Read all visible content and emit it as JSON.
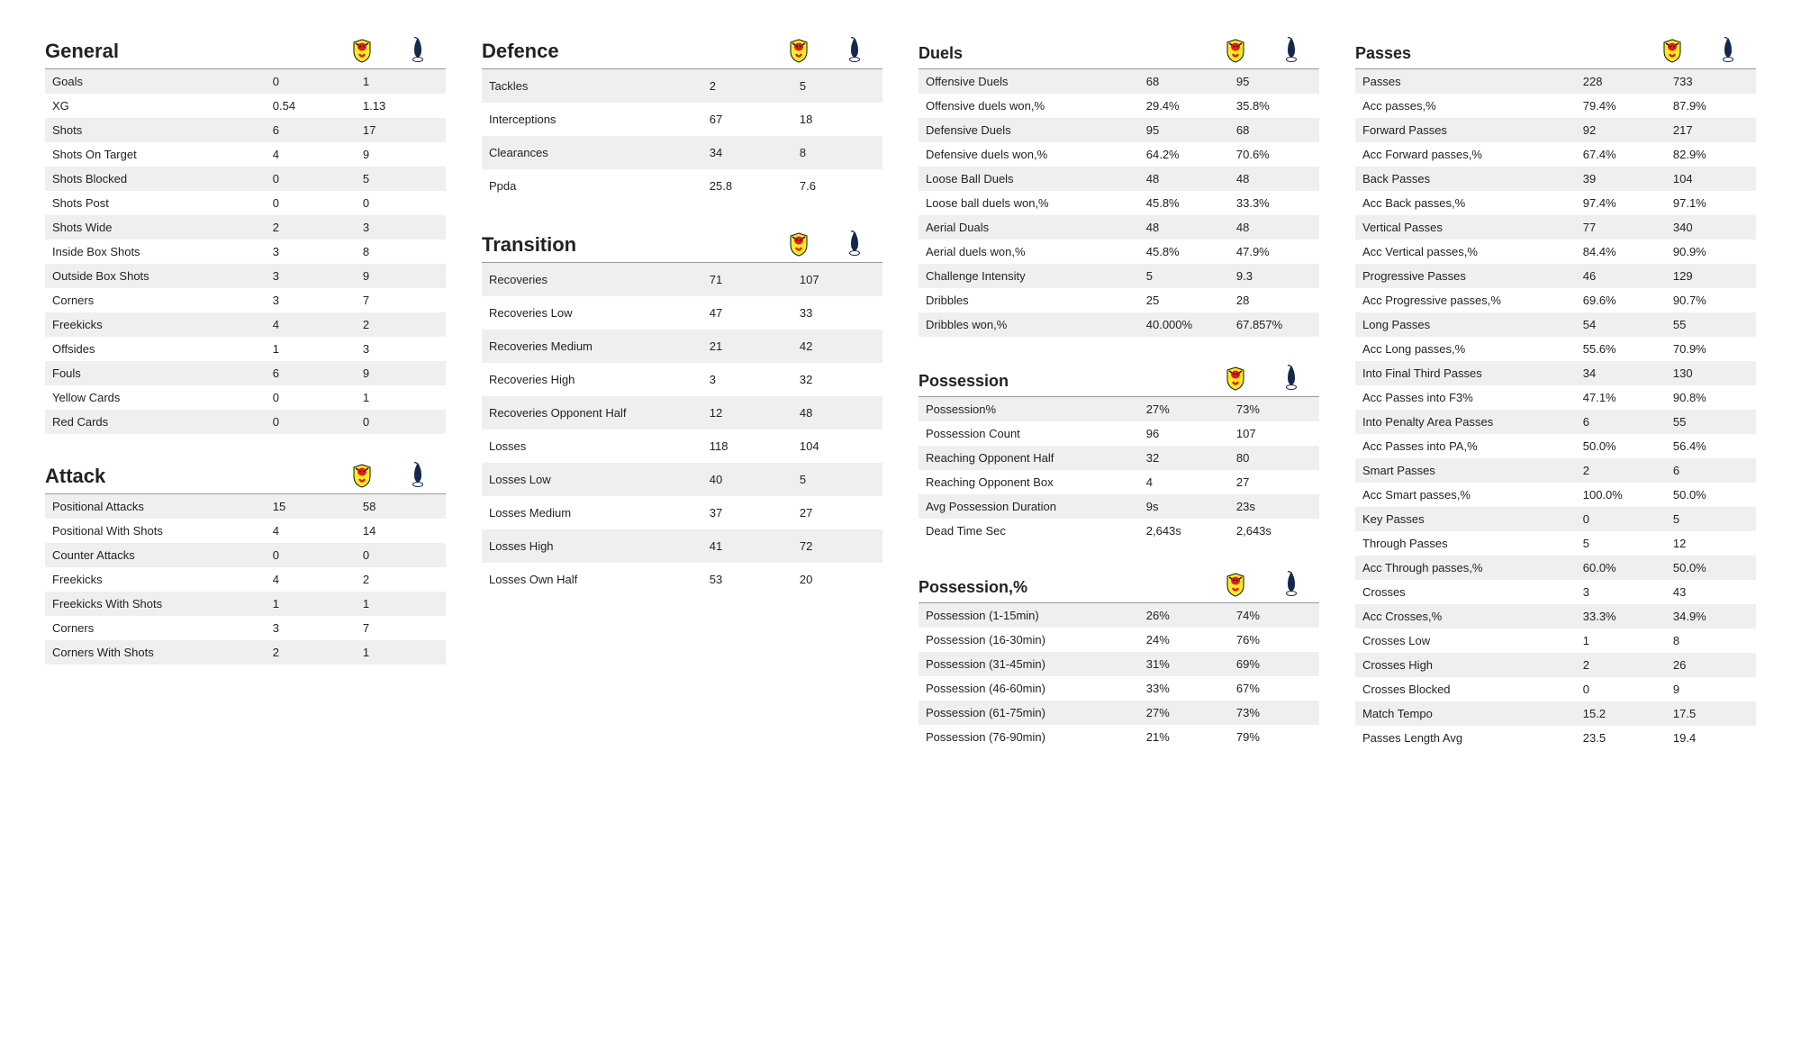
{
  "teams": {
    "home": "Watford",
    "away": "Tottenham"
  },
  "sections": {
    "general": {
      "title": "General",
      "rows": [
        {
          "label": "Goals",
          "home": "0",
          "away": "1"
        },
        {
          "label": "XG",
          "home": "0.54",
          "away": "1.13"
        },
        {
          "label": "Shots",
          "home": "6",
          "away": "17"
        },
        {
          "label": "Shots On Target",
          "home": "4",
          "away": "9"
        },
        {
          "label": "Shots Blocked",
          "home": "0",
          "away": "5"
        },
        {
          "label": "Shots Post",
          "home": "0",
          "away": "0"
        },
        {
          "label": "Shots Wide",
          "home": "2",
          "away": "3"
        },
        {
          "label": "Inside Box Shots",
          "home": "3",
          "away": "8"
        },
        {
          "label": "Outside Box Shots",
          "home": "3",
          "away": "9"
        },
        {
          "label": "Corners",
          "home": "3",
          "away": "7"
        },
        {
          "label": "Freekicks",
          "home": "4",
          "away": "2"
        },
        {
          "label": "Offsides",
          "home": "1",
          "away": "3"
        },
        {
          "label": "Fouls",
          "home": "6",
          "away": "9"
        },
        {
          "label": "Yellow Cards",
          "home": "0",
          "away": "1"
        },
        {
          "label": "Red Cards",
          "home": "0",
          "away": "0"
        }
      ]
    },
    "attack": {
      "title": "Attack",
      "rows": [
        {
          "label": "Positional Attacks",
          "home": "15",
          "away": "58"
        },
        {
          "label": "Positional With Shots",
          "home": "4",
          "away": "14"
        },
        {
          "label": "Counter Attacks",
          "home": "0",
          "away": "0"
        },
        {
          "label": "Freekicks",
          "home": "4",
          "away": "2"
        },
        {
          "label": "Freekicks With Shots",
          "home": "1",
          "away": "1"
        },
        {
          "label": "Corners",
          "home": "3",
          "away": "7"
        },
        {
          "label": "Corners With Shots",
          "home": "2",
          "away": "1"
        }
      ]
    },
    "defence": {
      "title": "Defence",
      "rows": [
        {
          "label": "Tackles",
          "home": "2",
          "away": "5"
        },
        {
          "label": "Interceptions",
          "home": "67",
          "away": "18"
        },
        {
          "label": "Clearances",
          "home": "34",
          "away": "8"
        },
        {
          "label": "Ppda",
          "home": "25.8",
          "away": "7.6"
        }
      ]
    },
    "transition": {
      "title": "Transition",
      "rows": [
        {
          "label": "Recoveries",
          "home": "71",
          "away": "107"
        },
        {
          "label": "Recoveries Low",
          "home": "47",
          "away": "33"
        },
        {
          "label": "Recoveries Medium",
          "home": "21",
          "away": "42"
        },
        {
          "label": "Recoveries High",
          "home": "3",
          "away": "32"
        },
        {
          "label": "Recoveries Opponent Half",
          "home": "12",
          "away": "48"
        },
        {
          "label": "Losses",
          "home": "118",
          "away": "104"
        },
        {
          "label": "Losses Low",
          "home": "40",
          "away": "5"
        },
        {
          "label": "Losses Medium",
          "home": "37",
          "away": "27"
        },
        {
          "label": "Losses High",
          "home": "41",
          "away": "72"
        },
        {
          "label": "Losses Own Half",
          "home": "53",
          "away": "20"
        }
      ]
    },
    "duels": {
      "title": "Duels",
      "rows": [
        {
          "label": "Offensive Duels",
          "home": "68",
          "away": "95"
        },
        {
          "label": "Offensive duels won,%",
          "home": "29.4%",
          "away": "35.8%"
        },
        {
          "label": "Defensive Duels",
          "home": "95",
          "away": "68"
        },
        {
          "label": "Defensive duels won,%",
          "home": "64.2%",
          "away": "70.6%"
        },
        {
          "label": "Loose Ball Duels",
          "home": "48",
          "away": "48"
        },
        {
          "label": "Loose ball duels won,%",
          "home": "45.8%",
          "away": "33.3%"
        },
        {
          "label": "Aerial Duals",
          "home": "48",
          "away": "48"
        },
        {
          "label": "Aerial duels won,%",
          "home": "45.8%",
          "away": "47.9%"
        },
        {
          "label": "Challenge Intensity",
          "home": "5",
          "away": "9.3"
        },
        {
          "label": "Dribbles",
          "home": "25",
          "away": "28"
        },
        {
          "label": "Dribbles won,%",
          "home": "40.000%",
          "away": "67.857%"
        }
      ]
    },
    "possession": {
      "title": "Possession",
      "rows": [
        {
          "label": "Possession%",
          "home": "27%",
          "away": "73%"
        },
        {
          "label": "Possession Count",
          "home": "96",
          "away": "107"
        },
        {
          "label": "Reaching Opponent Half",
          "home": "32",
          "away": "80"
        },
        {
          "label": "Reaching Opponent Box",
          "home": "4",
          "away": "27"
        },
        {
          "label": "Avg Possession Duration",
          "home": "9s",
          "away": "23s"
        },
        {
          "label": "Dead Time Sec",
          "home": "2,643s",
          "away": "2,643s"
        }
      ]
    },
    "possession_pct": {
      "title": "Possession,%",
      "rows": [
        {
          "label": "Possession (1-15min)",
          "home": "26%",
          "away": "74%"
        },
        {
          "label": "Possession (16-30min)",
          "home": "24%",
          "away": "76%"
        },
        {
          "label": "Possession (31-45min)",
          "home": "31%",
          "away": "69%"
        },
        {
          "label": "Possession (46-60min)",
          "home": "33%",
          "away": "67%"
        },
        {
          "label": "Possession (61-75min)",
          "home": "27%",
          "away": "73%"
        },
        {
          "label": "Possession (76-90min)",
          "home": "21%",
          "away": "79%"
        }
      ]
    },
    "passes": {
      "title": "Passes",
      "rows": [
        {
          "label": "Passes",
          "home": "228",
          "away": "733"
        },
        {
          "label": "Acc passes,%",
          "home": "79.4%",
          "away": "87.9%"
        },
        {
          "label": "Forward Passes",
          "home": "92",
          "away": "217"
        },
        {
          "label": "Acc Forward passes,%",
          "home": "67.4%",
          "away": "82.9%"
        },
        {
          "label": "Back Passes",
          "home": "39",
          "away": "104"
        },
        {
          "label": "Acc Back passes,%",
          "home": "97.4%",
          "away": "97.1%"
        },
        {
          "label": "Vertical Passes",
          "home": "77",
          "away": "340"
        },
        {
          "label": "Acc Vertical passes,%",
          "home": "84.4%",
          "away": "90.9%"
        },
        {
          "label": "Progressive Passes",
          "home": "46",
          "away": "129"
        },
        {
          "label": "Acc Progressive passes,%",
          "home": "69.6%",
          "away": "90.7%"
        },
        {
          "label": "Long Passes",
          "home": "54",
          "away": "55"
        },
        {
          "label": "Acc Long passes,%",
          "home": "55.6%",
          "away": "70.9%"
        },
        {
          "label": "Into Final Third Passes",
          "home": "34",
          "away": "130"
        },
        {
          "label": "Acc Passes into F3%",
          "home": "47.1%",
          "away": "90.8%"
        },
        {
          "label": "Into Penalty Area Passes",
          "home": "6",
          "away": "55"
        },
        {
          "label": "Acc Passes into PA,%",
          "home": "50.0%",
          "away": "56.4%"
        },
        {
          "label": "Smart Passes",
          "home": "2",
          "away": "6"
        },
        {
          "label": "Acc Smart passes,%",
          "home": "100.0%",
          "away": "50.0%"
        },
        {
          "label": "Key Passes",
          "home": "0",
          "away": "5"
        },
        {
          "label": "Through Passes",
          "home": "5",
          "away": "12"
        },
        {
          "label": "Acc Through passes,%",
          "home": "60.0%",
          "away": "50.0%"
        },
        {
          "label": "Crosses",
          "home": "3",
          "away": "43"
        },
        {
          "label": "Acc Crosses,%",
          "home": "33.3%",
          "away": "34.9%"
        },
        {
          "label": "Crosses Low",
          "home": "1",
          "away": "8"
        },
        {
          "label": "Crosses High",
          "home": "2",
          "away": "26"
        },
        {
          "label": "Crosses Blocked",
          "home": "0",
          "away": "9"
        },
        {
          "label": "Match Tempo",
          "home": "15.2",
          "away": "17.5"
        },
        {
          "label": "Passes Length Avg",
          "home": "23.5",
          "away": "19.4"
        }
      ]
    }
  },
  "layout": [
    {
      "tall": false,
      "compact": false,
      "sections": [
        "general",
        "attack"
      ]
    },
    {
      "tall": true,
      "compact": false,
      "sections": [
        "defence",
        "transition"
      ]
    },
    {
      "tall": false,
      "compact": true,
      "sections": [
        "duels",
        "possession",
        "possession_pct"
      ]
    },
    {
      "tall": false,
      "compact": true,
      "sections": [
        "passes"
      ]
    }
  ],
  "crest_colors": {
    "home_body": "#fbec21",
    "home_head": "#e31b23",
    "home_outline": "#111111",
    "away_ball": "#ffffff",
    "away_bird": "#16264c",
    "away_outline": "#16264c"
  }
}
